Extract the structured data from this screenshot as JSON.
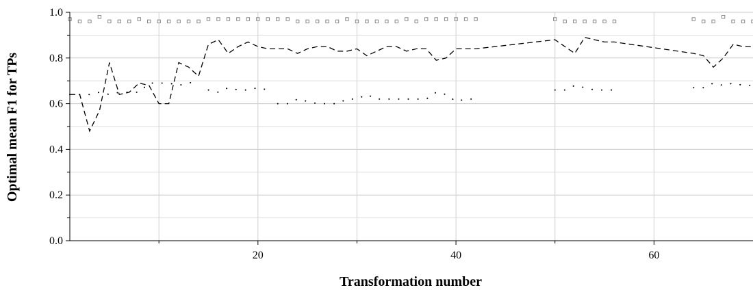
{
  "chart_data": {
    "type": "line",
    "title": "",
    "xlabel": "Transformation number",
    "ylabel": "Optimal mean F1 for TPs",
    "xlim": [
      1,
      70
    ],
    "ylim": [
      0,
      1
    ],
    "xticks": [
      20,
      40,
      60
    ],
    "xminor_ticks": [
      10,
      30,
      50
    ],
    "yticks": [
      0.0,
      0.2,
      0.4,
      0.6,
      0.8,
      1.0
    ],
    "ytick_labels": [
      "0.0",
      "0.2",
      "0.4",
      "0.6",
      "0.8",
      "1.0"
    ],
    "grid": true,
    "legend": "none",
    "series": [
      {
        "style": "dashed",
        "color": "#000000",
        "points": [
          [
            1,
            0.64
          ],
          [
            2,
            0.64
          ],
          [
            3,
            0.48
          ],
          [
            4,
            0.57
          ],
          [
            5,
            0.78
          ],
          [
            6,
            0.64
          ],
          [
            7,
            0.65
          ],
          [
            8,
            0.69
          ],
          [
            9,
            0.68
          ],
          [
            10,
            0.6
          ],
          [
            11,
            0.6
          ],
          [
            12,
            0.78
          ],
          [
            13,
            0.76
          ],
          [
            14,
            0.72
          ],
          [
            15,
            0.86
          ],
          [
            16,
            0.88
          ],
          [
            17,
            0.82
          ],
          [
            18,
            0.85
          ],
          [
            19,
            0.87
          ],
          [
            20,
            0.85
          ],
          [
            21,
            0.84
          ],
          [
            22,
            0.84
          ],
          [
            23,
            0.84
          ],
          [
            24,
            0.82
          ],
          [
            25,
            0.84
          ],
          [
            26,
            0.85
          ],
          [
            27,
            0.85
          ],
          [
            28,
            0.83
          ],
          [
            29,
            0.83
          ],
          [
            30,
            0.84
          ],
          [
            31,
            0.81
          ],
          [
            32,
            0.83
          ],
          [
            33,
            0.85
          ],
          [
            34,
            0.85
          ],
          [
            35,
            0.83
          ],
          [
            36,
            0.84
          ],
          [
            37,
            0.84
          ],
          [
            38,
            0.79
          ],
          [
            39,
            0.8
          ],
          [
            40,
            0.84
          ],
          [
            42,
            0.84
          ],
          [
            50,
            0.88
          ],
          [
            52,
            0.82
          ],
          [
            53,
            0.89
          ],
          [
            54,
            0.88
          ],
          [
            55,
            0.87
          ],
          [
            56,
            0.87
          ],
          [
            64,
            0.82
          ],
          [
            65,
            0.81
          ],
          [
            66,
            0.76
          ],
          [
            67,
            0.8
          ],
          [
            68,
            0.86
          ],
          [
            69,
            0.85
          ],
          [
            70,
            0.85
          ]
        ]
      },
      {
        "style": "dotted",
        "color": "#000000",
        "segments": [
          [
            [
              1,
              0.64
            ],
            [
              2,
              0.64
            ],
            [
              3,
              0.64
            ],
            [
              4,
              0.65
            ],
            [
              5,
              0.64
            ],
            [
              6,
              0.65
            ],
            [
              7,
              0.65
            ],
            [
              8,
              0.65
            ],
            [
              9,
              0.69
            ],
            [
              10,
              0.69
            ],
            [
              11,
              0.69
            ],
            [
              12,
              0.68
            ],
            [
              13,
              0.69
            ],
            [
              14,
              0.7
            ]
          ],
          [
            [
              15,
              0.66
            ],
            [
              16,
              0.65
            ],
            [
              17,
              0.67
            ],
            [
              18,
              0.66
            ],
            [
              19,
              0.66
            ],
            [
              20,
              0.67
            ],
            [
              21,
              0.66
            ]
          ],
          [
            [
              22,
              0.6
            ],
            [
              23,
              0.6
            ],
            [
              24,
              0.62
            ],
            [
              25,
              0.61
            ],
            [
              26,
              0.6
            ],
            [
              27,
              0.6
            ],
            [
              28,
              0.6
            ],
            [
              29,
              0.62
            ],
            [
              30,
              0.62
            ],
            [
              31,
              0.64
            ],
            [
              32,
              0.62
            ],
            [
              33,
              0.62
            ],
            [
              34,
              0.62
            ],
            [
              35,
              0.62
            ],
            [
              36,
              0.62
            ],
            [
              37,
              0.62
            ],
            [
              38,
              0.65
            ],
            [
              39,
              0.64
            ],
            [
              40,
              0.61
            ],
            [
              41,
              0.62
            ],
            [
              42,
              0.62
            ]
          ],
          [
            [
              50,
              0.66
            ],
            [
              51,
              0.66
            ],
            [
              52,
              0.68
            ],
            [
              53,
              0.67
            ],
            [
              54,
              0.66
            ],
            [
              55,
              0.66
            ],
            [
              56,
              0.66
            ]
          ],
          [
            [
              64,
              0.67
            ],
            [
              65,
              0.67
            ],
            [
              66,
              0.69
            ],
            [
              67,
              0.68
            ],
            [
              68,
              0.69
            ],
            [
              69,
              0.68
            ],
            [
              70,
              0.68
            ]
          ]
        ]
      },
      {
        "style": "square-markers",
        "color": "#888888",
        "points": [
          [
            1,
            0.97
          ],
          [
            2,
            0.96
          ],
          [
            3,
            0.96
          ],
          [
            4,
            0.98
          ],
          [
            5,
            0.96
          ],
          [
            6,
            0.96
          ],
          [
            7,
            0.96
          ],
          [
            8,
            0.97
          ],
          [
            9,
            0.96
          ],
          [
            10,
            0.96
          ],
          [
            11,
            0.96
          ],
          [
            12,
            0.96
          ],
          [
            13,
            0.96
          ],
          [
            14,
            0.96
          ],
          [
            15,
            0.97
          ],
          [
            16,
            0.97
          ],
          [
            17,
            0.97
          ],
          [
            18,
            0.97
          ],
          [
            19,
            0.97
          ],
          [
            20,
            0.97
          ],
          [
            21,
            0.97
          ],
          [
            22,
            0.97
          ],
          [
            23,
            0.97
          ],
          [
            24,
            0.96
          ],
          [
            25,
            0.96
          ],
          [
            26,
            0.96
          ],
          [
            27,
            0.96
          ],
          [
            28,
            0.96
          ],
          [
            29,
            0.97
          ],
          [
            30,
            0.96
          ],
          [
            31,
            0.96
          ],
          [
            32,
            0.96
          ],
          [
            33,
            0.96
          ],
          [
            34,
            0.96
          ],
          [
            35,
            0.97
          ],
          [
            36,
            0.96
          ],
          [
            37,
            0.97
          ],
          [
            38,
            0.97
          ],
          [
            39,
            0.97
          ],
          [
            40,
            0.97
          ],
          [
            41,
            0.97
          ],
          [
            42,
            0.97
          ],
          [
            50,
            0.97
          ],
          [
            51,
            0.96
          ],
          [
            52,
            0.96
          ],
          [
            53,
            0.96
          ],
          [
            54,
            0.96
          ],
          [
            55,
            0.96
          ],
          [
            56,
            0.96
          ],
          [
            64,
            0.97
          ],
          [
            65,
            0.96
          ],
          [
            66,
            0.96
          ],
          [
            67,
            0.98
          ],
          [
            68,
            0.96
          ],
          [
            69,
            0.96
          ],
          [
            70,
            0.96
          ]
        ]
      }
    ]
  }
}
